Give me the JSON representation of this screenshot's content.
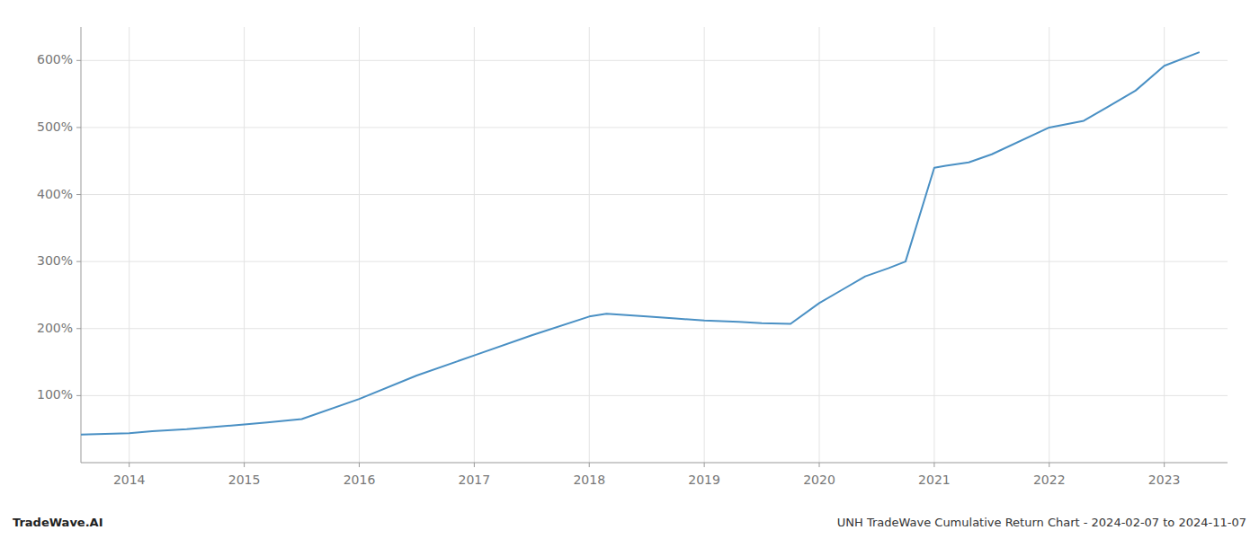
{
  "chart_data": {
    "type": "line",
    "annotations": [
      "TradeWave.AI",
      "UNH TradeWave Cumulative Return Chart - 2024-02-07 to 2024-11-07"
    ],
    "color": "#4a90c4",
    "x": [
      2013.58,
      2014.0,
      2014.2,
      2014.5,
      2015.0,
      2015.2,
      2015.5,
      2016.0,
      2016.5,
      2017.0,
      2017.5,
      2018.0,
      2018.15,
      2018.5,
      2018.75,
      2019.0,
      2019.3,
      2019.5,
      2019.75,
      2020.0,
      2020.2,
      2020.4,
      2020.6,
      2020.75,
      2021.0,
      2021.1,
      2021.3,
      2021.5,
      2022.0,
      2022.3,
      2022.5,
      2022.75,
      2023.0,
      2023.3
    ],
    "values": [
      42,
      44,
      47,
      50,
      57,
      60,
      65,
      95,
      130,
      160,
      190,
      218,
      222,
      218,
      215,
      212,
      210,
      208,
      207,
      238,
      258,
      278,
      290,
      300,
      440,
      443,
      448,
      460,
      500,
      510,
      530,
      555,
      592,
      612
    ],
    "xlim": [
      2013.58,
      2023.55
    ],
    "xticks": [
      2014,
      2015,
      2016,
      2017,
      2018,
      2019,
      2020,
      2021,
      2022,
      2023
    ],
    "ylim": [
      0,
      650
    ],
    "yticks": [
      {
        "value": 100,
        "label": "100%"
      },
      {
        "value": 200,
        "label": "200%"
      },
      {
        "value": 300,
        "label": "300%"
      },
      {
        "value": 400,
        "label": "400%"
      },
      {
        "value": 500,
        "label": "500%"
      },
      {
        "value": 600,
        "label": "600%"
      }
    ],
    "grid": true
  }
}
